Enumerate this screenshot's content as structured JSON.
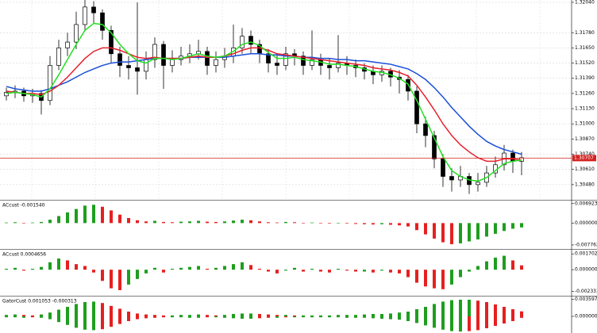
{
  "chart_data": [
    {
      "type": "candlestick",
      "open": [
        1.3124,
        1.3127,
        1.3128,
        1.3124,
        1.3126,
        1.312,
        1.315,
        1.3165,
        1.317,
        1.3185,
        1.32,
        1.3195,
        1.318,
        1.316,
        1.315,
        1.3148,
        1.3145,
        1.3155,
        1.3168,
        1.315,
        1.3155,
        1.3158,
        1.316,
        1.3162,
        1.315,
        1.3155,
        1.3158,
        1.3165,
        1.3175,
        1.3168,
        1.316,
        1.3152,
        1.315,
        1.316,
        1.3158,
        1.315,
        1.3155,
        1.315,
        1.3148,
        1.3152,
        1.315,
        1.3148,
        1.3145,
        1.3142,
        1.3145,
        1.314,
        1.3138,
        1.3128,
        1.31,
        1.309,
        1.307,
        1.3055,
        1.3052,
        1.3055,
        1.3048,
        1.305,
        1.3058,
        1.3065,
        1.3075,
        1.3068
      ],
      "high": [
        1.3131,
        1.3133,
        1.3131,
        1.313,
        1.3129,
        1.3158,
        1.3172,
        1.3178,
        1.3196,
        1.3206,
        1.3205,
        1.3198,
        1.3184,
        1.3166,
        1.3158,
        1.3204,
        1.3162,
        1.3174,
        1.3171,
        1.3163,
        1.3166,
        1.3168,
        1.3172,
        1.3166,
        1.3162,
        1.3165,
        1.3185,
        1.3182,
        1.318,
        1.3172,
        1.3164,
        1.316,
        1.3166,
        1.3164,
        1.3162,
        1.318,
        1.316,
        1.3156,
        1.3176,
        1.3158,
        1.3155,
        1.3152,
        1.315,
        1.315,
        1.3148,
        1.3146,
        1.3142,
        1.3132,
        1.3106,
        1.3094,
        1.3074,
        1.3062,
        1.3064,
        1.3058,
        1.3058,
        1.3064,
        1.3072,
        1.3082,
        1.3078,
        1.3076
      ],
      "low": [
        1.312,
        1.3122,
        1.3119,
        1.3118,
        1.3108,
        1.3116,
        1.3146,
        1.3158,
        1.3164,
        1.318,
        1.3186,
        1.3172,
        1.3152,
        1.314,
        1.3138,
        1.3125,
        1.3138,
        1.3148,
        1.313,
        1.3144,
        1.315,
        1.3152,
        1.3155,
        1.3142,
        1.3144,
        1.3148,
        1.3152,
        1.316,
        1.316,
        1.3152,
        1.3144,
        1.3142,
        1.3146,
        1.315,
        1.3142,
        1.3146,
        1.3142,
        1.3138,
        1.3144,
        1.3142,
        1.314,
        1.3138,
        1.3134,
        1.3136,
        1.3132,
        1.3126,
        1.312,
        1.3092,
        1.308,
        1.3062,
        1.3046,
        1.3042,
        1.3046,
        1.304,
        1.3042,
        1.3046,
        1.3054,
        1.306,
        1.3058,
        1.3056
      ],
      "close": [
        1.3127,
        1.3128,
        1.3124,
        1.3126,
        1.312,
        1.315,
        1.3165,
        1.317,
        1.3185,
        1.32,
        1.3195,
        1.318,
        1.316,
        1.315,
        1.3148,
        1.3145,
        1.3155,
        1.3168,
        1.315,
        1.3155,
        1.3158,
        1.316,
        1.3162,
        1.315,
        1.3155,
        1.3158,
        1.3165,
        1.3175,
        1.3168,
        1.316,
        1.3152,
        1.315,
        1.316,
        1.3158,
        1.315,
        1.3155,
        1.315,
        1.3148,
        1.3152,
        1.315,
        1.3148,
        1.3145,
        1.3142,
        1.3145,
        1.314,
        1.3138,
        1.3128,
        1.31,
        1.309,
        1.307,
        1.3055,
        1.3052,
        1.3055,
        1.3048,
        1.305,
        1.3058,
        1.3065,
        1.3075,
        1.3068,
        1.3071
      ],
      "lines": [
        {
          "color": "#1a4fd8",
          "values": [
            1.3132,
            1.313,
            1.3129,
            1.3128,
            1.3128,
            1.313,
            1.3133,
            1.3136,
            1.314,
            1.3144,
            1.3147,
            1.315,
            1.3152,
            1.3153,
            1.3153,
            1.3154,
            1.3155,
            1.3156,
            1.3156,
            1.3156,
            1.3156,
            1.3157,
            1.3157,
            1.3157,
            1.3157,
            1.3157,
            1.3158,
            1.3159,
            1.316,
            1.316,
            1.3159,
            1.3159,
            1.3158,
            1.3158,
            1.3157,
            1.3157,
            1.3156,
            1.3156,
            1.3155,
            1.3155,
            1.3154,
            1.3154,
            1.3153,
            1.3152,
            1.3151,
            1.3149,
            1.3147,
            1.3143,
            1.3138,
            1.3131,
            1.3123,
            1.3114,
            1.3106,
            1.3098,
            1.3091,
            1.3085,
            1.3081,
            1.3078,
            1.3076,
            1.3074
          ]
        },
        {
          "color": "#e8202a",
          "values": [
            1.3128,
            1.3127,
            1.3126,
            1.3126,
            1.3125,
            1.3128,
            1.3133,
            1.314,
            1.3148,
            1.3156,
            1.3162,
            1.3165,
            1.3165,
            1.3163,
            1.316,
            1.3157,
            1.3156,
            1.3157,
            1.3156,
            1.3156,
            1.3156,
            1.3157,
            1.3158,
            1.3157,
            1.3157,
            1.3158,
            1.316,
            1.3163,
            1.3165,
            1.3165,
            1.3163,
            1.316,
            1.3159,
            1.3158,
            1.3157,
            1.3156,
            1.3155,
            1.3154,
            1.3153,
            1.3152,
            1.3151,
            1.315,
            1.3148,
            1.3147,
            1.3146,
            1.3144,
            1.3141,
            1.3133,
            1.3123,
            1.3112,
            1.31,
            1.309,
            1.3082,
            1.3076,
            1.3071,
            1.3068,
            1.3068,
            1.307,
            1.307,
            1.3069
          ]
        },
        {
          "color": "#22e022",
          "values": [
            1.3126,
            1.3127,
            1.3126,
            1.3125,
            1.3123,
            1.313,
            1.3142,
            1.3155,
            1.3168,
            1.318,
            1.3186,
            1.3185,
            1.3178,
            1.3168,
            1.316,
            1.3154,
            1.3152,
            1.3156,
            1.3156,
            1.3155,
            1.3156,
            1.3158,
            1.316,
            1.3158,
            1.3157,
            1.3158,
            1.3162,
            1.3168,
            1.317,
            1.3167,
            1.3161,
            1.3156,
            1.3156,
            1.3157,
            1.3155,
            1.3154,
            1.3153,
            1.3151,
            1.3151,
            1.315,
            1.3149,
            1.3147,
            1.3145,
            1.3144,
            1.3142,
            1.3139,
            1.3134,
            1.312,
            1.3104,
            1.3088,
            1.3072,
            1.306,
            1.3055,
            1.3052,
            1.3051,
            1.3054,
            1.306,
            1.3066,
            1.3068,
            1.3069
          ]
        }
      ],
      "up_color": "#ffffff",
      "down_color": "#000000",
      "ylim": [
        1.3035,
        1.3206
      ],
      "yticks": [
        {
          "value": 1.3204,
          "label": "1.32040"
        },
        {
          "value": 1.3178,
          "label": "1.31780"
        },
        {
          "value": 1.3165,
          "label": "1.31650"
        },
        {
          "value": 1.3152,
          "label": "1.31520"
        },
        {
          "value": 1.3139,
          "label": "1.31390"
        },
        {
          "value": 1.3126,
          "label": "1.31260"
        },
        {
          "value": 1.3113,
          "label": "1.31130"
        },
        {
          "value": 1.31,
          "label": "1.31000"
        },
        {
          "value": 1.3087,
          "label": "1.30870"
        },
        {
          "value": 1.3074,
          "label": "1.30740"
        },
        {
          "value": 1.3061,
          "label": "1.30610"
        },
        {
          "value": 1.3048,
          "label": "1.30480"
        }
      ],
      "price_line": {
        "value": 1.30707,
        "label": "1.30707",
        "color": "#d42020"
      },
      "grid": true
    },
    {
      "type": "bar",
      "label": "ACcust -0.001540",
      "color_rule": "change",
      "up_color": "#1e9e1e",
      "down_color": "#e52020",
      "series": [
        {
          "values": [
            0.0002,
            0.0003,
            0.0001,
            0.0002,
            0.0004,
            0.0012,
            0.0025,
            0.0038,
            0.005,
            0.0062,
            0.0065,
            0.0058,
            0.0045,
            0.003,
            0.0018,
            0.001,
            0.0006,
            0.0008,
            0.0004,
            0.0003,
            0.0005,
            0.0006,
            0.0008,
            0.0005,
            0.0004,
            0.0006,
            0.0009,
            0.0012,
            0.001,
            0.0006,
            0.0003,
            0.0002,
            0.0004,
            0.0003,
            0.0001,
            0.0002,
            0.0,
            -0.0002,
            -0.0001,
            -0.0002,
            -0.0003,
            -0.0004,
            -0.0005,
            -0.0004,
            -0.0006,
            -0.0008,
            -0.0012,
            -0.0025,
            -0.004,
            -0.0055,
            -0.0068,
            -0.0075,
            -0.0072,
            -0.0065,
            -0.0058,
            -0.0048,
            -0.0038,
            -0.0028,
            -0.002,
            -0.00154
          ]
        }
      ],
      "ylim": [
        -0.0089,
        0.0077
      ],
      "yticks": [
        0.006923,
        {
          "value": 0,
          "label": "0.000000"
        },
        -0.007762
      ]
    },
    {
      "type": "bar",
      "label": "ACcust 0.0004656",
      "color_rule": "change",
      "up_color": "#1e9e1e",
      "down_color": "#e52020",
      "series": [
        {
          "values": [
            0.0001,
            0.0002,
            -0.0001,
            0.0001,
            0.0003,
            0.0008,
            0.0012,
            0.001,
            0.0006,
            0.0004,
            -0.0003,
            -0.0012,
            -0.002,
            -0.0022,
            -0.0016,
            -0.001,
            -0.0004,
            0.0002,
            -0.0003,
            0.0001,
            0.0002,
            0.0003,
            0.0004,
            0.0001,
            0.0002,
            0.0004,
            0.0006,
            0.0008,
            0.0005,
            0.0001,
            -0.0002,
            -0.0004,
            -0.0001,
            0.0002,
            -0.0002,
            0.0001,
            -0.0002,
            -0.0003,
            0.0001,
            -0.0001,
            -0.0002,
            -0.0002,
            -0.0003,
            -0.0001,
            -0.0003,
            -0.0004,
            -0.0008,
            -0.0014,
            -0.0018,
            -0.002,
            -0.0021,
            -0.0016,
            -0.0008,
            -0.0002,
            0.0004,
            0.0009,
            0.0013,
            0.0015,
            0.001,
            0.0004656
          ]
        }
      ],
      "ylim": [
        -0.0028,
        0.00206
      ],
      "yticks": [
        0.0017027,
        {
          "value": 0,
          "label": "0.0000000"
        },
        -0.0023338
      ]
    },
    {
      "type": "bar",
      "label": "GatorCust 0.001053 -0.000313",
      "color_rule": "abs_change",
      "up_color": "#1e9e1e",
      "down_color": "#e52020",
      "series": [
        {
          "values": [
            0.0003,
            0.0004,
            0.0003,
            0.0002,
            0.0004,
            0.0008,
            0.0014,
            0.002,
            0.0026,
            0.003,
            0.0031,
            0.0028,
            0.0022,
            0.0016,
            0.001,
            0.0006,
            0.0004,
            0.0003,
            0.0002,
            0.0002,
            0.0003,
            0.0003,
            0.0004,
            0.0003,
            0.0002,
            0.0003,
            0.0005,
            0.0006,
            0.0006,
            0.0005,
            0.0004,
            0.0003,
            0.0003,
            0.0002,
            0.0002,
            0.0002,
            0.0002,
            0.0002,
            0.0003,
            0.0003,
            0.0003,
            0.0004,
            0.0005,
            0.0005,
            0.0006,
            0.0008,
            0.001,
            0.0015,
            0.002,
            0.0026,
            0.0031,
            0.0034,
            0.0035,
            0.0035,
            0.0033,
            0.003,
            0.0025,
            0.002,
            0.0015,
            0.001053
          ]
        },
        {
          "values": [
            -0.0002,
            -0.0002,
            -0.0003,
            -0.0002,
            -0.0003,
            -0.0006,
            -0.0012,
            -0.0018,
            -0.0024,
            -0.0028,
            -0.0029,
            -0.0027,
            -0.0022,
            -0.0016,
            -0.001,
            -0.0006,
            -0.0004,
            -0.0003,
            -0.0002,
            -0.0002,
            -0.0002,
            -0.0003,
            -0.0003,
            -0.0002,
            -0.0002,
            -0.0003,
            -0.0004,
            -0.0005,
            -0.0005,
            -0.0004,
            -0.0003,
            -0.0003,
            -0.0002,
            -0.0002,
            -0.0002,
            -0.0002,
            -0.0002,
            -0.0002,
            -0.0002,
            -0.0003,
            -0.0003,
            -0.0003,
            -0.0004,
            -0.0005,
            -0.0006,
            -0.0007,
            -0.001,
            -0.0014,
            -0.0019,
            -0.0024,
            -0.0028,
            -0.0031,
            -0.0032,
            -0.0031,
            -0.0029,
            -0.0025,
            -0.002,
            -0.0015,
            -0.001,
            -0.000313
          ]
        }
      ],
      "ylim": [
        -0.0035,
        0.004
      ],
      "yticks": [
        0.003597,
        {
          "value": 0,
          "label": "0.000000"
        }
      ]
    }
  ]
}
